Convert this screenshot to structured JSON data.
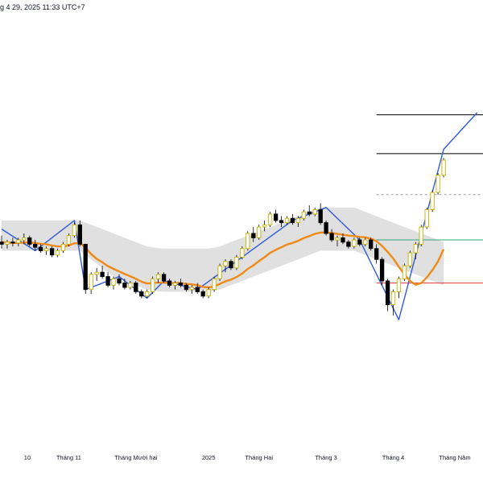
{
  "header": {
    "timestamp": "g 4 29, 2025 11:33 UTC+7"
  },
  "colors": {
    "bull": "#ffffff",
    "bull_border": "#c9b000",
    "bear": "#000000",
    "ema": "#ef8a17",
    "band": "#cfcfcf",
    "trend": "#2f5bd9",
    "hline": "#000000",
    "green_line": "#2ca87a",
    "red_line": "#e0383e",
    "axis_text": "#131722"
  },
  "xaxis_labels": [
    "10",
    "Tháng 11",
    "Tháng Mười hai",
    "2025",
    "Tháng Hai",
    "Tháng 3",
    "Tháng 4",
    "Tháng Năm"
  ],
  "chart_data": {
    "type": "candlestick",
    "title": "",
    "x_axis": {
      "labels": [
        "10",
        "Tháng 11",
        "Tháng Mười hai",
        "2025",
        "Tháng Hai",
        "Tháng 3",
        "Tháng 4",
        "Tháng Năm"
      ]
    },
    "y_axis": {
      "tick_labels": [],
      "range": [
        0,
        100
      ]
    },
    "candles": [
      {
        "o": 48,
        "h": 49.5,
        "l": 46.5,
        "c": 47.5
      },
      {
        "o": 47.5,
        "h": 48.5,
        "l": 46.5,
        "c": 48
      },
      {
        "o": 48,
        "h": 49,
        "l": 47,
        "c": 47.8
      },
      {
        "o": 47.8,
        "h": 49,
        "l": 47,
        "c": 48.5
      },
      {
        "o": 48.5,
        "h": 50,
        "l": 47.5,
        "c": 49
      },
      {
        "o": 49,
        "h": 49.5,
        "l": 47,
        "c": 47.5
      },
      {
        "o": 47.5,
        "h": 48.5,
        "l": 46,
        "c": 46.8
      },
      {
        "o": 46.8,
        "h": 47.5,
        "l": 45.5,
        "c": 46
      },
      {
        "o": 46,
        "h": 47,
        "l": 45,
        "c": 46.5
      },
      {
        "o": 46.5,
        "h": 47,
        "l": 44.5,
        "c": 45
      },
      {
        "o": 45,
        "h": 46.5,
        "l": 44.5,
        "c": 46
      },
      {
        "o": 46,
        "h": 48,
        "l": 45.5,
        "c": 47.5
      },
      {
        "o": 47.5,
        "h": 50,
        "l": 47,
        "c": 49.5
      },
      {
        "o": 49.5,
        "h": 52.5,
        "l": 49,
        "c": 52
      },
      {
        "o": 52,
        "h": 53,
        "l": 47,
        "c": 47.5
      },
      {
        "o": 47.5,
        "h": 47.5,
        "l": 36,
        "c": 37
      },
      {
        "o": 37,
        "h": 41,
        "l": 36,
        "c": 40.5
      },
      {
        "o": 40.5,
        "h": 42,
        "l": 39,
        "c": 41
      },
      {
        "o": 41,
        "h": 42.5,
        "l": 39.5,
        "c": 40
      },
      {
        "o": 40,
        "h": 41,
        "l": 37.5,
        "c": 38
      },
      {
        "o": 38,
        "h": 40,
        "l": 37,
        "c": 39.5
      },
      {
        "o": 39.5,
        "h": 40.5,
        "l": 38,
        "c": 38.5
      },
      {
        "o": 38.5,
        "h": 39.5,
        "l": 37,
        "c": 37.5
      },
      {
        "o": 37.5,
        "h": 39,
        "l": 37,
        "c": 38.5
      },
      {
        "o": 38.5,
        "h": 39,
        "l": 36,
        "c": 36.5
      },
      {
        "o": 36.5,
        "h": 37,
        "l": 35,
        "c": 35.5
      },
      {
        "o": 35.5,
        "h": 37,
        "l": 35,
        "c": 36.5
      },
      {
        "o": 36.5,
        "h": 40,
        "l": 36,
        "c": 39.5
      },
      {
        "o": 39.5,
        "h": 41,
        "l": 38.5,
        "c": 40.5
      },
      {
        "o": 40.5,
        "h": 41,
        "l": 38.5,
        "c": 39
      },
      {
        "o": 39,
        "h": 39.5,
        "l": 37.5,
        "c": 38
      },
      {
        "o": 38,
        "h": 39,
        "l": 37,
        "c": 38.5
      },
      {
        "o": 38.5,
        "h": 39.5,
        "l": 37.5,
        "c": 38
      },
      {
        "o": 38,
        "h": 38.5,
        "l": 36.5,
        "c": 37
      },
      {
        "o": 37,
        "h": 38,
        "l": 36,
        "c": 37.5
      },
      {
        "o": 37.5,
        "h": 38.5,
        "l": 36,
        "c": 36.5
      },
      {
        "o": 36.5,
        "h": 37,
        "l": 35,
        "c": 35.5
      },
      {
        "o": 35.5,
        "h": 37.5,
        "l": 35,
        "c": 37
      },
      {
        "o": 37,
        "h": 40,
        "l": 36.5,
        "c": 39.5
      },
      {
        "o": 39.5,
        "h": 43,
        "l": 39,
        "c": 42.5
      },
      {
        "o": 42.5,
        "h": 44,
        "l": 41,
        "c": 43.5
      },
      {
        "o": 43.5,
        "h": 44,
        "l": 41.5,
        "c": 42
      },
      {
        "o": 42,
        "h": 45,
        "l": 41.5,
        "c": 44.5
      },
      {
        "o": 44.5,
        "h": 47,
        "l": 44,
        "c": 46.5
      },
      {
        "o": 46.5,
        "h": 50.5,
        "l": 46,
        "c": 50
      },
      {
        "o": 50,
        "h": 51.5,
        "l": 48,
        "c": 49
      },
      {
        "o": 49,
        "h": 52,
        "l": 48.5,
        "c": 51.5
      },
      {
        "o": 51.5,
        "h": 53,
        "l": 50.5,
        "c": 52
      },
      {
        "o": 52,
        "h": 55,
        "l": 51.5,
        "c": 54.5
      },
      {
        "o": 54.5,
        "h": 55.5,
        "l": 52.5,
        "c": 53
      },
      {
        "o": 53,
        "h": 54,
        "l": 51.5,
        "c": 52.5
      },
      {
        "o": 52.5,
        "h": 54,
        "l": 52,
        "c": 53.5
      },
      {
        "o": 53.5,
        "h": 54.5,
        "l": 52,
        "c": 52.5
      },
      {
        "o": 52.5,
        "h": 54,
        "l": 51.5,
        "c": 53.5
      },
      {
        "o": 53.5,
        "h": 55.5,
        "l": 53,
        "c": 55
      },
      {
        "o": 55,
        "h": 56.5,
        "l": 54,
        "c": 54.5
      },
      {
        "o": 54.5,
        "h": 56,
        "l": 54,
        "c": 55.5
      },
      {
        "o": 55.5,
        "h": 57,
        "l": 52,
        "c": 52.5
      },
      {
        "o": 52.5,
        "h": 53,
        "l": 49.5,
        "c": 50
      },
      {
        "o": 50,
        "h": 51,
        "l": 48,
        "c": 48.5
      },
      {
        "o": 48.5,
        "h": 49.5,
        "l": 47,
        "c": 49
      },
      {
        "o": 49,
        "h": 50,
        "l": 47.5,
        "c": 48
      },
      {
        "o": 48,
        "h": 48.5,
        "l": 46.5,
        "c": 47
      },
      {
        "o": 47,
        "h": 49,
        "l": 46.5,
        "c": 48.5
      },
      {
        "o": 48.5,
        "h": 49,
        "l": 47,
        "c": 47.5
      },
      {
        "o": 47.5,
        "h": 49,
        "l": 47,
        "c": 48.5
      },
      {
        "o": 48.5,
        "h": 49,
        "l": 46,
        "c": 46.5
      },
      {
        "o": 46.5,
        "h": 47.5,
        "l": 43,
        "c": 44
      },
      {
        "o": 44,
        "h": 44.5,
        "l": 38,
        "c": 39
      },
      {
        "o": 39,
        "h": 39.5,
        "l": 32,
        "c": 33.5
      },
      {
        "o": 33.5,
        "h": 37,
        "l": 31,
        "c": 36.5
      },
      {
        "o": 36.5,
        "h": 40,
        "l": 35,
        "c": 39.5
      },
      {
        "o": 39.5,
        "h": 43,
        "l": 39,
        "c": 42.5
      },
      {
        "o": 42.5,
        "h": 46,
        "l": 42,
        "c": 45.5
      },
      {
        "o": 45.5,
        "h": 48,
        "l": 44,
        "c": 47.5
      },
      {
        "o": 47.5,
        "h": 52,
        "l": 47,
        "c": 51.5
      },
      {
        "o": 51.5,
        "h": 56,
        "l": 51,
        "c": 55.5
      },
      {
        "o": 55.5,
        "h": 60,
        "l": 55,
        "c": 59.5
      },
      {
        "o": 59.5,
        "h": 64,
        "l": 59,
        "c": 63.5
      },
      {
        "o": 63.5,
        "h": 67.5,
        "l": 63,
        "c": 67
      }
    ],
    "ema": [
      48,
      47.9,
      47.8,
      47.8,
      47.9,
      47.9,
      47.8,
      47.6,
      47.5,
      47.2,
      47,
      47,
      47.2,
      47.7,
      47.8,
      46.7,
      45.2,
      44.1,
      43.3,
      42.4,
      41.8,
      41.2,
      40.6,
      40.1,
      39.5,
      38.8,
      38.4,
      38.5,
      38.6,
      38.6,
      38.5,
      38.5,
      38.5,
      38.3,
      38.2,
      38,
      37.6,
      37.5,
      37.7,
      38.3,
      38.9,
      39.3,
      39.9,
      40.7,
      41.8,
      42.6,
      43.6,
      44.5,
      45.5,
      46.2,
      46.8,
      47.4,
      47.8,
      48.3,
      48.9,
      49.4,
      49.9,
      50.2,
      50.2,
      50.1,
      49.9,
      49.7,
      49.5,
      49.4,
      49.2,
      49.1,
      48.8,
      48.2,
      47.1,
      45.7,
      44.2,
      42.3,
      40.5,
      39,
      38.1,
      38.5,
      39.8,
      41.5,
      43.5,
      46.3
    ],
    "band_upper": [
      53,
      53,
      53,
      53,
      53,
      53,
      53,
      53,
      53,
      53,
      53,
      53,
      53,
      53,
      53,
      52.5,
      52,
      51.5,
      51,
      50.5,
      50,
      49.5,
      49,
      48.5,
      48,
      47.5,
      47,
      46.8,
      46.6,
      46.5,
      46.5,
      46.5,
      46.5,
      46.5,
      46.5,
      46.5,
      46.5,
      46.5,
      46.7,
      47,
      47.5,
      48,
      48.5,
      49,
      49.5,
      50,
      50.5,
      51,
      51.5,
      52,
      52.5,
      53,
      53.5,
      54,
      54.5,
      55,
      55.5,
      56,
      56,
      56,
      56,
      56,
      56,
      56,
      55.5,
      55,
      54.5,
      54,
      53.5,
      53,
      52.5,
      52,
      51.5,
      51,
      50.5,
      50,
      49.5,
      49,
      48.5,
      48
    ],
    "band_lower": [
      46,
      46,
      46,
      46,
      46,
      46,
      46,
      46,
      46,
      46,
      46,
      46,
      46,
      46,
      46,
      45,
      44,
      43,
      42,
      41,
      40,
      39.5,
      39,
      38.5,
      38,
      37.5,
      37,
      36.8,
      36.6,
      36.5,
      36.5,
      36.5,
      36.5,
      36.5,
      36.5,
      36.5,
      36.5,
      36.5,
      36.7,
      37,
      37.5,
      38,
      38.5,
      39,
      39.5,
      40,
      40.5,
      41,
      41.5,
      42,
      42.5,
      43,
      43.5,
      44,
      44.5,
      45,
      45.5,
      46,
      46,
      46,
      46,
      46,
      46,
      46,
      45.5,
      45,
      44.5,
      44,
      43.5,
      43,
      42.5,
      42,
      41.5,
      41,
      40.5,
      40,
      39.5,
      39,
      38.5,
      38
    ],
    "trend_points": [
      [
        0,
        51
      ],
      [
        6,
        46
      ],
      [
        13,
        53
      ],
      [
        15,
        37
      ],
      [
        21,
        40
      ],
      [
        26,
        35
      ],
      [
        29,
        39
      ],
      [
        35,
        37
      ],
      [
        52,
        53
      ],
      [
        58,
        56
      ],
      [
        64,
        48.5
      ],
      [
        71,
        30
      ],
      [
        79,
        69.5
      ],
      [
        85,
        78
      ]
    ],
    "levels": [
      {
        "name": "upper",
        "value": 77.5,
        "style": "solid",
        "color": "#000000"
      },
      {
        "name": "mid",
        "value": 68.5,
        "style": "solid",
        "color": "#000000"
      },
      {
        "name": "dash",
        "value": 59,
        "style": "dashed",
        "color": "#9aa0a6"
      },
      {
        "name": "green",
        "value": 48.5,
        "style": "solid",
        "color": "#2ca87a"
      },
      {
        "name": "red",
        "value": 38.5,
        "style": "solid",
        "color": "#e0383e"
      }
    ]
  }
}
